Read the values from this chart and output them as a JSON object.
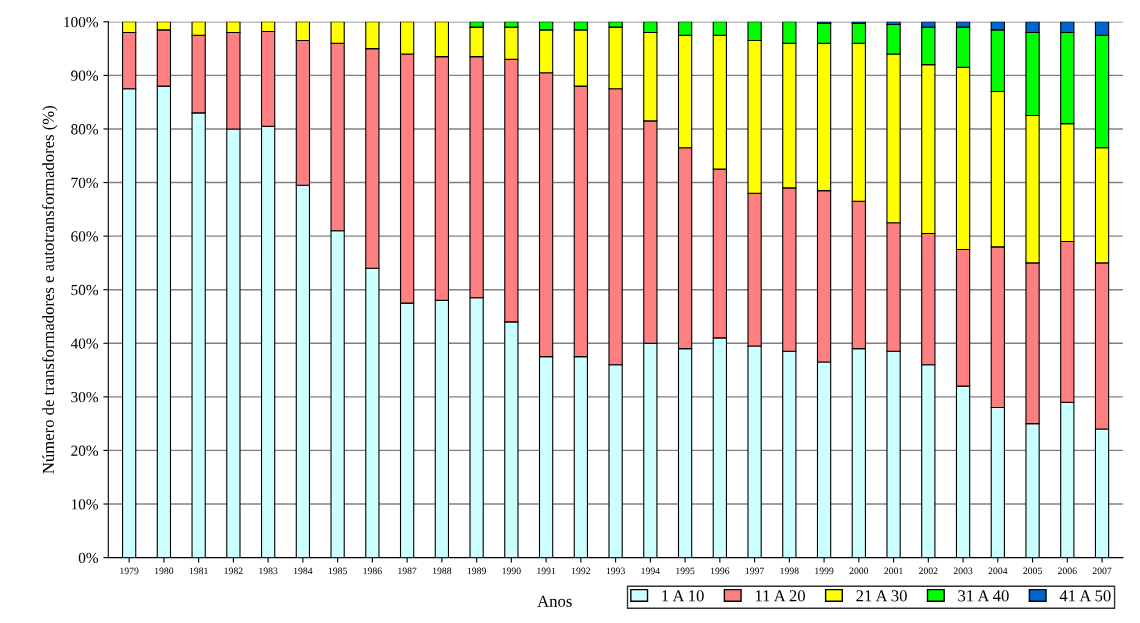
{
  "chart_data": {
    "type": "bar",
    "stacked": true,
    "xlabel": "Anos",
    "ylabel": "Número de transformadores e autotransformadores (%)",
    "categories": [
      "1979",
      "1980",
      "1981",
      "1982",
      "1983",
      "1984",
      "1985",
      "1986",
      "1987",
      "1988",
      "1989",
      "1990",
      "1991",
      "1992",
      "1993",
      "1994",
      "1995",
      "1996",
      "1997",
      "1998",
      "1999",
      "2000",
      "2001",
      "2002",
      "2003",
      "2004",
      "2005",
      "2006",
      "2007"
    ],
    "series": [
      {
        "name": "1 A 10",
        "color": "#ccffff",
        "values": [
          87.5,
          88,
          83,
          80,
          80.5,
          69.5,
          61,
          54,
          47.5,
          48,
          48.5,
          44,
          37.5,
          37.5,
          36,
          40,
          39,
          41,
          39.5,
          38.5,
          36.5,
          39,
          38.5,
          36,
          32,
          28,
          25,
          29,
          24
        ]
      },
      {
        "name": "11 A 20",
        "color": "#ff8080",
        "values": [
          10.5,
          10.5,
          14.5,
          18,
          17.7,
          27,
          35,
          41,
          46.5,
          45.5,
          45,
          49,
          53,
          50.5,
          51.5,
          41.5,
          37.5,
          31.5,
          28.5,
          30.5,
          32,
          27.5,
          24,
          24.5,
          25.5,
          30,
          30,
          30,
          31
        ]
      },
      {
        "name": "21 A 30",
        "color": "#ffff00",
        "values": [
          2,
          1.5,
          2.5,
          2,
          1.8,
          3.5,
          4,
          5,
          6,
          6.5,
          5.5,
          6,
          8,
          10.5,
          11.5,
          16.5,
          21,
          25,
          28.5,
          27,
          27.5,
          29.5,
          31.5,
          31.5,
          34,
          29,
          27.5,
          22,
          21.5
        ]
      },
      {
        "name": "31 A 40",
        "color": "#00ff00",
        "values": [
          0,
          0,
          0,
          0,
          0,
          0,
          0,
          0,
          0,
          0,
          1,
          1,
          1.5,
          1.5,
          1,
          2,
          2.5,
          2.5,
          3.5,
          4,
          3.7,
          3.7,
          5.5,
          7,
          7.5,
          11.5,
          15.5,
          17,
          21
        ]
      },
      {
        "name": "41 A 50",
        "color": "#0066cc",
        "values": [
          0,
          0,
          0,
          0,
          0,
          0,
          0,
          0,
          0,
          0,
          0,
          0,
          0,
          0,
          0,
          0,
          0,
          0,
          0,
          0,
          0.3,
          0.3,
          0.5,
          1,
          1,
          1.5,
          2,
          2,
          2.5
        ]
      }
    ],
    "ylim": [
      0,
      100
    ],
    "yticks": [
      {
        "value": 0,
        "label": "0%"
      },
      {
        "value": 10,
        "label": "10%"
      },
      {
        "value": 20,
        "label": "20%"
      },
      {
        "value": 30,
        "label": "30%"
      },
      {
        "value": 40,
        "label": "40%"
      },
      {
        "value": 50,
        "label": "50%"
      },
      {
        "value": 60,
        "label": "60%"
      },
      {
        "value": 70,
        "label": "70%"
      },
      {
        "value": 80,
        "label": "80%"
      },
      {
        "value": 90,
        "label": "90%"
      },
      {
        "value": 100,
        "label": "100%"
      }
    ],
    "grid": "y",
    "legend": "bottom right"
  }
}
